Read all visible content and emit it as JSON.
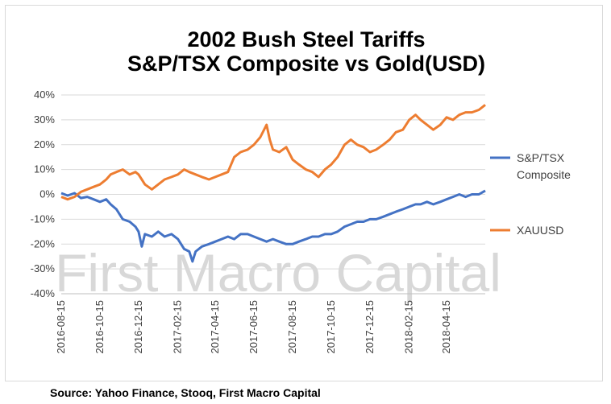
{
  "chart_data": {
    "type": "line",
    "title": "2002 Bush Steel Tariffs",
    "subtitle": "S&P/TSX Composite vs Gold(USD)",
    "xlabel": "",
    "ylabel": "",
    "y_tick_labels": [
      "40%",
      "30%",
      "20%",
      "10%",
      "0%",
      "-10%",
      "-20%",
      "-30%",
      "-40%"
    ],
    "ylim": [
      -40,
      40
    ],
    "x_tick_labels": [
      "2016-08-15",
      "2016-10-15",
      "2016-12-15",
      "2017-02-15",
      "2017-04-15",
      "2017-06-15",
      "2017-08-15",
      "2017-10-15",
      "2017-12-15",
      "2018-02-15",
      "2018-04-15"
    ],
    "xlim": [
      "2016-08-15",
      "2018-06-15"
    ],
    "grid": "horizontal",
    "legend_position": "right",
    "series": [
      {
        "name": "S&P/TSX Composite",
        "color": "#4472C4",
        "points": [
          [
            "2016-08-15",
            0.5
          ],
          [
            "2016-08-25",
            -0.5
          ],
          [
            "2016-09-05",
            0.5
          ],
          [
            "2016-09-15",
            -1.5
          ],
          [
            "2016-09-25",
            -1
          ],
          [
            "2016-10-05",
            -2
          ],
          [
            "2016-10-15",
            -3
          ],
          [
            "2016-10-25",
            -2
          ],
          [
            "2016-11-01",
            -4
          ],
          [
            "2016-11-10",
            -6
          ],
          [
            "2016-11-20",
            -10
          ],
          [
            "2016-12-01",
            -11
          ],
          [
            "2016-12-10",
            -13
          ],
          [
            "2016-12-15",
            -15
          ],
          [
            "2016-12-20",
            -21
          ],
          [
            "2016-12-25",
            -16
          ],
          [
            "2017-01-05",
            -17
          ],
          [
            "2017-01-15",
            -15
          ],
          [
            "2017-01-25",
            -17
          ],
          [
            "2017-02-05",
            -16
          ],
          [
            "2017-02-15",
            -18
          ],
          [
            "2017-02-25",
            -22
          ],
          [
            "2017-03-05",
            -23
          ],
          [
            "2017-03-10",
            -27
          ],
          [
            "2017-03-15",
            -23
          ],
          [
            "2017-03-25",
            -21
          ],
          [
            "2017-04-05",
            -20
          ],
          [
            "2017-04-15",
            -19
          ],
          [
            "2017-04-25",
            -18
          ],
          [
            "2017-05-05",
            -17
          ],
          [
            "2017-05-15",
            -18
          ],
          [
            "2017-05-25",
            -16
          ],
          [
            "2017-06-05",
            -16
          ],
          [
            "2017-06-15",
            -17
          ],
          [
            "2017-06-25",
            -18
          ],
          [
            "2017-07-05",
            -19
          ],
          [
            "2017-07-15",
            -18
          ],
          [
            "2017-07-25",
            -19
          ],
          [
            "2017-08-05",
            -20
          ],
          [
            "2017-08-15",
            -20
          ],
          [
            "2017-08-25",
            -19
          ],
          [
            "2017-09-05",
            -18
          ],
          [
            "2017-09-15",
            -17
          ],
          [
            "2017-09-25",
            -17
          ],
          [
            "2017-10-05",
            -16
          ],
          [
            "2017-10-15",
            -16
          ],
          [
            "2017-10-25",
            -15
          ],
          [
            "2017-11-05",
            -13
          ],
          [
            "2017-11-15",
            -12
          ],
          [
            "2017-11-25",
            -11
          ],
          [
            "2017-12-05",
            -11
          ],
          [
            "2017-12-15",
            -10
          ],
          [
            "2017-12-25",
            -10
          ],
          [
            "2018-01-05",
            -9
          ],
          [
            "2018-01-15",
            -8
          ],
          [
            "2018-01-25",
            -7
          ],
          [
            "2018-02-05",
            -6
          ],
          [
            "2018-02-15",
            -5
          ],
          [
            "2018-02-25",
            -4
          ],
          [
            "2018-03-05",
            -4
          ],
          [
            "2018-03-15",
            -3
          ],
          [
            "2018-03-25",
            -4
          ],
          [
            "2018-04-05",
            -3
          ],
          [
            "2018-04-15",
            -2
          ],
          [
            "2018-04-25",
            -1
          ],
          [
            "2018-05-05",
            0
          ],
          [
            "2018-05-15",
            -1
          ],
          [
            "2018-05-25",
            0
          ],
          [
            "2018-06-05",
            0
          ],
          [
            "2018-06-15",
            1.5
          ]
        ]
      },
      {
        "name": "XAUUSD",
        "color": "#ED7D31",
        "points": [
          [
            "2016-08-15",
            -1
          ],
          [
            "2016-08-25",
            -2
          ],
          [
            "2016-09-05",
            -1
          ],
          [
            "2016-09-15",
            1
          ],
          [
            "2016-09-25",
            2
          ],
          [
            "2016-10-05",
            3
          ],
          [
            "2016-10-15",
            4
          ],
          [
            "2016-10-25",
            6
          ],
          [
            "2016-11-01",
            8
          ],
          [
            "2016-11-10",
            9
          ],
          [
            "2016-11-20",
            10
          ],
          [
            "2016-12-01",
            8
          ],
          [
            "2016-12-10",
            9
          ],
          [
            "2016-12-15",
            8
          ],
          [
            "2016-12-20",
            6
          ],
          [
            "2016-12-25",
            4
          ],
          [
            "2017-01-05",
            2
          ],
          [
            "2017-01-15",
            4
          ],
          [
            "2017-01-25",
            6
          ],
          [
            "2017-02-05",
            7
          ],
          [
            "2017-02-15",
            8
          ],
          [
            "2017-02-25",
            10
          ],
          [
            "2017-03-05",
            9
          ],
          [
            "2017-03-15",
            8
          ],
          [
            "2017-03-25",
            7
          ],
          [
            "2017-04-05",
            6
          ],
          [
            "2017-04-15",
            7
          ],
          [
            "2017-04-25",
            8
          ],
          [
            "2017-05-05",
            9
          ],
          [
            "2017-05-15",
            15
          ],
          [
            "2017-05-25",
            17
          ],
          [
            "2017-06-05",
            18
          ],
          [
            "2017-06-15",
            20
          ],
          [
            "2017-06-25",
            23
          ],
          [
            "2017-07-05",
            28
          ],
          [
            "2017-07-10",
            22
          ],
          [
            "2017-07-15",
            18
          ],
          [
            "2017-07-25",
            17
          ],
          [
            "2017-08-05",
            19
          ],
          [
            "2017-08-15",
            14
          ],
          [
            "2017-08-25",
            12
          ],
          [
            "2017-09-05",
            10
          ],
          [
            "2017-09-15",
            9
          ],
          [
            "2017-09-25",
            7
          ],
          [
            "2017-10-05",
            10
          ],
          [
            "2017-10-15",
            12
          ],
          [
            "2017-10-25",
            15
          ],
          [
            "2017-11-05",
            20
          ],
          [
            "2017-11-15",
            22
          ],
          [
            "2017-11-25",
            20
          ],
          [
            "2017-12-05",
            19
          ],
          [
            "2017-12-15",
            17
          ],
          [
            "2017-12-25",
            18
          ],
          [
            "2018-01-05",
            20
          ],
          [
            "2018-01-15",
            22
          ],
          [
            "2018-01-25",
            25
          ],
          [
            "2018-02-05",
            26
          ],
          [
            "2018-02-15",
            30
          ],
          [
            "2018-02-25",
            32
          ],
          [
            "2018-03-05",
            30
          ],
          [
            "2018-03-15",
            28
          ],
          [
            "2018-03-25",
            26
          ],
          [
            "2018-04-05",
            28
          ],
          [
            "2018-04-15",
            31
          ],
          [
            "2018-04-25",
            30
          ],
          [
            "2018-05-05",
            32
          ],
          [
            "2018-05-15",
            33
          ],
          [
            "2018-05-25",
            33
          ],
          [
            "2018-06-05",
            34
          ],
          [
            "2018-06-15",
            36
          ]
        ]
      }
    ],
    "legend": [
      {
        "lines": [
          "S&P/TSX",
          "Composite"
        ],
        "color": "#4472C4"
      },
      {
        "lines": [
          "XAUUSD"
        ],
        "color": "#ED7D31"
      }
    ],
    "watermark": "First Macro Capital"
  },
  "footer": {
    "source": "Source: Yahoo Finance, Stooq, First Macro Capital"
  }
}
